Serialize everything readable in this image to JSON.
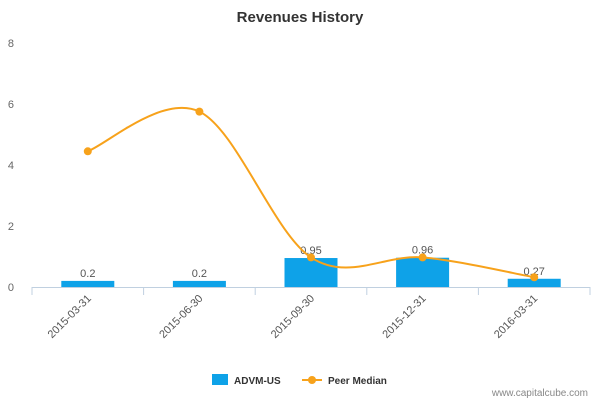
{
  "chart_data": {
    "type": "bar",
    "title": "Revenues History",
    "xlabel": "",
    "ylabel": "",
    "categories": [
      "2015-03-31",
      "2015-06-30",
      "2015-09-30",
      "2015-12-31",
      "2016-03-31"
    ],
    "ylim": [
      0,
      8
    ],
    "yticks": [
      "0",
      "2",
      "4",
      "6",
      "8"
    ],
    "grid": false,
    "legend_position": "bottom-center",
    "series": [
      {
        "name": "ADVM-US",
        "type": "bar",
        "color": "#0EA2E8",
        "values": [
          0.2,
          0.2,
          0.95,
          0.96,
          0.27
        ],
        "labels": [
          "0.2",
          "0.2",
          "0.95",
          "0.96",
          "0.27"
        ]
      },
      {
        "name": "Peer Median",
        "type": "line",
        "color": "#F7A21B",
        "values": [
          4.45,
          5.75,
          0.97,
          0.97,
          0.32
        ]
      }
    ]
  },
  "watermark": "www.capitalcube.com"
}
